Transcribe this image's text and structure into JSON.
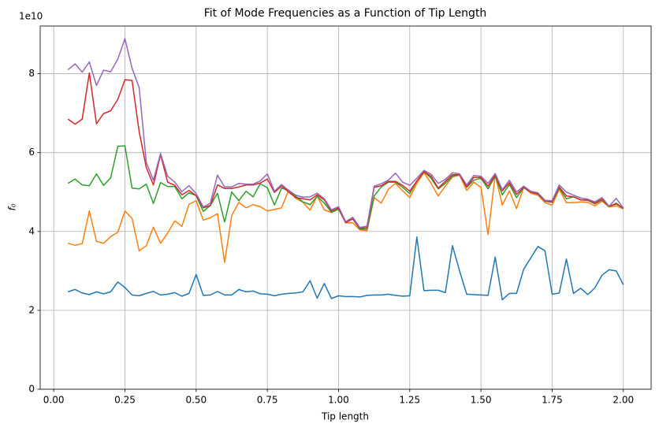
{
  "chart_data": {
    "type": "line",
    "title": "Fit of Mode Frequencies as a Function of Tip Length",
    "x_label": "Tip length",
    "y_label": "f₀",
    "y_offset_label": "1e10",
    "grid": true,
    "x": [
      0.05,
      0.075,
      0.1,
      0.125,
      0.15,
      0.175,
      0.2,
      0.225,
      0.25,
      0.275,
      0.3,
      0.325,
      0.35,
      0.375,
      0.4,
      0.425,
      0.45,
      0.475,
      0.5,
      0.525,
      0.55,
      0.575,
      0.6,
      0.625,
      0.65,
      0.675,
      0.7,
      0.725,
      0.75,
      0.775,
      0.8,
      0.825,
      0.85,
      0.875,
      0.9,
      0.925,
      0.95,
      0.975,
      1.0,
      1.025,
      1.05,
      1.075,
      1.1,
      1.125,
      1.15,
      1.175,
      1.2,
      1.225,
      1.25,
      1.275,
      1.3,
      1.325,
      1.35,
      1.375,
      1.4,
      1.425,
      1.45,
      1.475,
      1.5,
      1.525,
      1.55,
      1.575,
      1.6,
      1.625,
      1.65,
      1.675,
      1.7,
      1.725,
      1.75,
      1.775,
      1.8,
      1.825,
      1.85,
      1.875,
      1.9,
      1.925,
      1.95,
      1.975,
      2.0
    ],
    "series": [
      {
        "color": "#1f77b4",
        "values": [
          2.47,
          2.53,
          2.44,
          2.4,
          2.47,
          2.42,
          2.47,
          2.72,
          2.58,
          2.39,
          2.37,
          2.43,
          2.48,
          2.39,
          2.41,
          2.45,
          2.36,
          2.43,
          2.91,
          2.38,
          2.39,
          2.48,
          2.39,
          2.39,
          2.53,
          2.47,
          2.49,
          2.42,
          2.41,
          2.37,
          2.41,
          2.43,
          2.44,
          2.47,
          2.75,
          2.31,
          2.68,
          2.3,
          2.37,
          2.35,
          2.35,
          2.34,
          2.38,
          2.39,
          2.39,
          2.41,
          2.38,
          2.36,
          2.37,
          3.86,
          2.5,
          2.51,
          2.51,
          2.45,
          3.64,
          3.0,
          2.41,
          2.4,
          2.39,
          2.38,
          3.35,
          2.27,
          2.43,
          2.43,
          3.04,
          3.33,
          3.62,
          3.51,
          2.41,
          2.44,
          3.3,
          2.43,
          2.56,
          2.4,
          2.57,
          2.89,
          3.03,
          3.0,
          2.65
        ]
      },
      {
        "color": "#ff7f0e",
        "values": [
          3.7,
          3.65,
          3.69,
          4.52,
          3.75,
          3.7,
          3.87,
          3.98,
          4.52,
          4.33,
          3.51,
          3.64,
          4.11,
          3.7,
          3.96,
          4.27,
          4.13,
          4.69,
          4.78,
          4.29,
          4.35,
          4.45,
          3.22,
          4.41,
          4.74,
          4.6,
          4.68,
          4.63,
          4.52,
          4.56,
          4.6,
          5.05,
          4.84,
          4.74,
          4.54,
          4.9,
          4.55,
          4.48,
          4.57,
          4.22,
          4.22,
          4.04,
          4.02,
          4.86,
          4.72,
          5.07,
          5.22,
          5.03,
          4.86,
          5.22,
          5.49,
          5.22,
          4.9,
          5.15,
          5.38,
          5.43,
          5.04,
          5.25,
          5.12,
          3.92,
          5.43,
          4.67,
          5.03,
          4.58,
          5.12,
          4.97,
          4.92,
          4.73,
          4.67,
          5.07,
          4.73,
          4.73,
          4.75,
          4.74,
          4.65,
          4.77,
          4.62,
          4.65,
          4.57
        ]
      },
      {
        "color": "#2ca02c",
        "values": [
          5.22,
          5.33,
          5.18,
          5.16,
          5.46,
          5.17,
          5.36,
          6.16,
          6.17,
          5.1,
          5.08,
          5.2,
          4.71,
          5.24,
          5.14,
          5.14,
          4.83,
          4.98,
          4.91,
          4.51,
          4.66,
          4.97,
          4.24,
          5.0,
          4.78,
          5.02,
          4.88,
          5.21,
          5.11,
          4.67,
          5.1,
          5.04,
          4.89,
          4.75,
          4.68,
          4.89,
          4.72,
          4.49,
          4.56,
          4.25,
          4.32,
          4.06,
          4.06,
          4.9,
          5.13,
          5.25,
          5.25,
          5.12,
          4.96,
          5.28,
          5.52,
          5.35,
          5.08,
          5.22,
          5.4,
          5.44,
          5.12,
          5.3,
          5.35,
          5.08,
          5.41,
          4.93,
          5.19,
          4.86,
          5.11,
          5.0,
          4.95,
          4.77,
          4.74,
          5.1,
          4.83,
          4.88,
          4.8,
          4.79,
          4.7,
          4.8,
          4.63,
          4.72,
          4.58
        ]
      },
      {
        "color": "#d62728",
        "values": [
          6.85,
          6.72,
          6.85,
          8.02,
          6.73,
          6.99,
          7.06,
          7.35,
          7.85,
          7.83,
          6.53,
          5.62,
          5.18,
          5.95,
          5.25,
          5.17,
          4.93,
          5.04,
          4.91,
          4.6,
          4.66,
          5.18,
          5.09,
          5.09,
          5.13,
          5.18,
          5.18,
          5.23,
          5.33,
          4.99,
          5.15,
          5.0,
          4.86,
          4.83,
          4.8,
          4.93,
          4.8,
          4.52,
          4.6,
          4.22,
          4.32,
          4.08,
          4.1,
          5.12,
          5.16,
          5.27,
          5.27,
          5.17,
          5.02,
          5.28,
          5.52,
          5.4,
          5.1,
          5.27,
          5.44,
          5.44,
          5.13,
          5.37,
          5.37,
          5.15,
          5.43,
          5.03,
          5.24,
          4.94,
          5.12,
          5.0,
          4.96,
          4.77,
          4.75,
          5.13,
          4.9,
          4.88,
          4.8,
          4.8,
          4.72,
          4.82,
          4.64,
          4.7,
          4.59
        ]
      },
      {
        "color": "#9467bd",
        "values": [
          8.1,
          8.25,
          8.04,
          8.3,
          7.7,
          8.09,
          8.05,
          8.37,
          8.89,
          8.14,
          7.65,
          5.75,
          5.3,
          5.98,
          5.4,
          5.25,
          5.01,
          5.16,
          4.96,
          4.62,
          4.72,
          5.43,
          5.13,
          5.13,
          5.22,
          5.2,
          5.2,
          5.28,
          5.46,
          5.02,
          5.19,
          5.04,
          4.92,
          4.87,
          4.88,
          4.97,
          4.83,
          4.55,
          4.63,
          4.25,
          4.36,
          4.1,
          4.14,
          5.15,
          5.21,
          5.3,
          5.48,
          5.25,
          5.17,
          5.35,
          5.55,
          5.45,
          5.22,
          5.32,
          5.49,
          5.46,
          5.18,
          5.42,
          5.4,
          5.22,
          5.47,
          5.06,
          5.3,
          5.0,
          5.15,
          5.02,
          4.98,
          4.79,
          4.78,
          5.18,
          5.0,
          4.92,
          4.85,
          4.82,
          4.75,
          4.86,
          4.64,
          4.84,
          4.59
        ]
      }
    ],
    "xlim": [
      -0.0475,
      2.0975
    ],
    "xticks": [
      {
        "value": 0,
        "label": "0.00"
      },
      {
        "value": 0.25,
        "label": "0.25"
      },
      {
        "value": 0.5,
        "label": "0.50"
      },
      {
        "value": 0.75,
        "label": "0.75"
      },
      {
        "value": 1,
        "label": "1.00"
      },
      {
        "value": 1.25,
        "label": "1.25"
      },
      {
        "value": 1.5,
        "label": "1.50"
      },
      {
        "value": 1.75,
        "label": "1.75"
      },
      {
        "value": 2,
        "label": "2.00"
      }
    ],
    "ylim": [
      0,
      9.21
    ],
    "yticks": [
      0,
      2,
      4,
      6,
      8
    ]
  }
}
